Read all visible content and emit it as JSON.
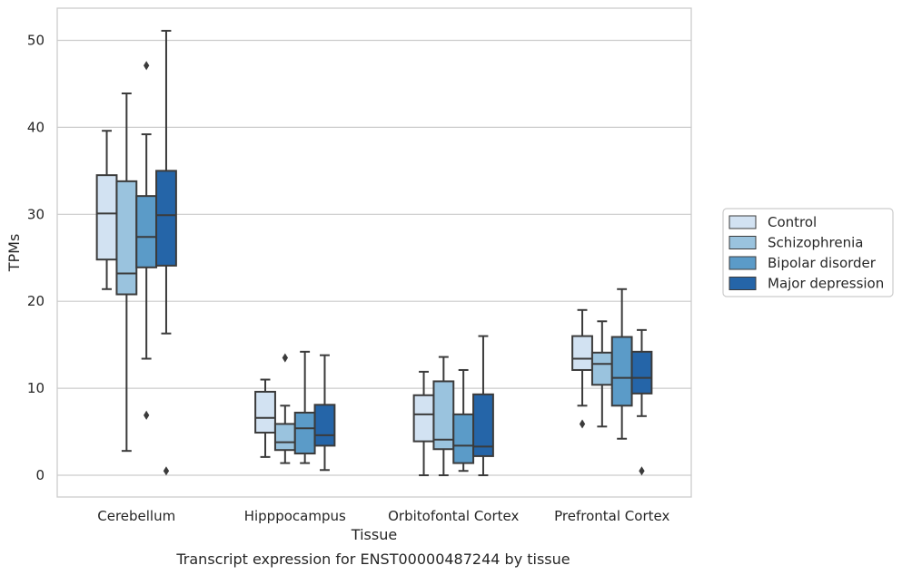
{
  "chart_data": {
    "type": "box",
    "caption": "Transcript expression for ENST00000487244 by tissue",
    "xlabel": "Tissue",
    "ylabel": "TPMs",
    "ylim": [
      -2.5,
      53.7
    ],
    "yticks": [
      0,
      10,
      20,
      30,
      40,
      50
    ],
    "grid": "horizontal",
    "legend_position": "right",
    "categories": [
      "Cerebellum",
      "Hipppocampus",
      "Orbitofontal Cortex",
      "Prefrontal Cortex"
    ],
    "series": [
      {
        "name": "Control",
        "color": "#d2e2f2",
        "boxes": [
          {
            "whislo": 21.4,
            "q1": 24.8,
            "med": 30.1,
            "q3": 34.5,
            "whishi": 39.6,
            "fliers": []
          },
          {
            "whislo": 2.1,
            "q1": 4.9,
            "med": 6.6,
            "q3": 9.6,
            "whishi": 11.0,
            "fliers": []
          },
          {
            "whislo": 0.0,
            "q1": 3.9,
            "med": 7.0,
            "q3": 9.2,
            "whishi": 11.9,
            "fliers": []
          },
          {
            "whislo": 8.0,
            "q1": 12.1,
            "med": 13.4,
            "q3": 16.0,
            "whishi": 19.0,
            "fliers": [
              5.9
            ]
          }
        ]
      },
      {
        "name": "Schizophrenia",
        "color": "#9ac3de",
        "boxes": [
          {
            "whislo": 2.8,
            "q1": 20.8,
            "med": 23.2,
            "q3": 33.8,
            "whishi": 43.9,
            "fliers": []
          },
          {
            "whislo": 1.4,
            "q1": 2.9,
            "med": 3.8,
            "q3": 5.9,
            "whishi": 8.0,
            "fliers": [
              13.5
            ]
          },
          {
            "whislo": 0.0,
            "q1": 3.0,
            "med": 4.1,
            "q3": 10.8,
            "whishi": 13.6,
            "fliers": []
          },
          {
            "whislo": 5.6,
            "q1": 10.4,
            "med": 12.8,
            "q3": 14.1,
            "whishi": 17.7,
            "fliers": []
          }
        ]
      },
      {
        "name": "Bipolar disorder",
        "color": "#5b9bc8",
        "boxes": [
          {
            "whislo": 13.4,
            "q1": 23.9,
            "med": 27.4,
            "q3": 32.1,
            "whishi": 39.2,
            "fliers": [
              47.1,
              6.9
            ]
          },
          {
            "whislo": 1.4,
            "q1": 2.5,
            "med": 5.4,
            "q3": 7.2,
            "whishi": 14.2,
            "fliers": []
          },
          {
            "whislo": 0.5,
            "q1": 1.4,
            "med": 3.4,
            "q3": 7.0,
            "whishi": 12.1,
            "fliers": []
          },
          {
            "whislo": 4.2,
            "q1": 8.0,
            "med": 11.2,
            "q3": 15.9,
            "whishi": 21.4,
            "fliers": []
          }
        ]
      },
      {
        "name": "Major depression",
        "color": "#2565a8",
        "boxes": [
          {
            "whislo": 16.3,
            "q1": 24.1,
            "med": 29.9,
            "q3": 35.0,
            "whishi": 51.1,
            "fliers": [
              0.5
            ]
          },
          {
            "whislo": 0.6,
            "q1": 3.4,
            "med": 4.6,
            "q3": 8.1,
            "whishi": 13.8,
            "fliers": []
          },
          {
            "whislo": 0.0,
            "q1": 2.2,
            "med": 3.3,
            "q3": 9.3,
            "whishi": 16.0,
            "fliers": []
          },
          {
            "whislo": 6.8,
            "q1": 9.4,
            "med": 11.2,
            "q3": 14.2,
            "whishi": 16.7,
            "fliers": [
              0.5
            ]
          }
        ]
      }
    ]
  }
}
